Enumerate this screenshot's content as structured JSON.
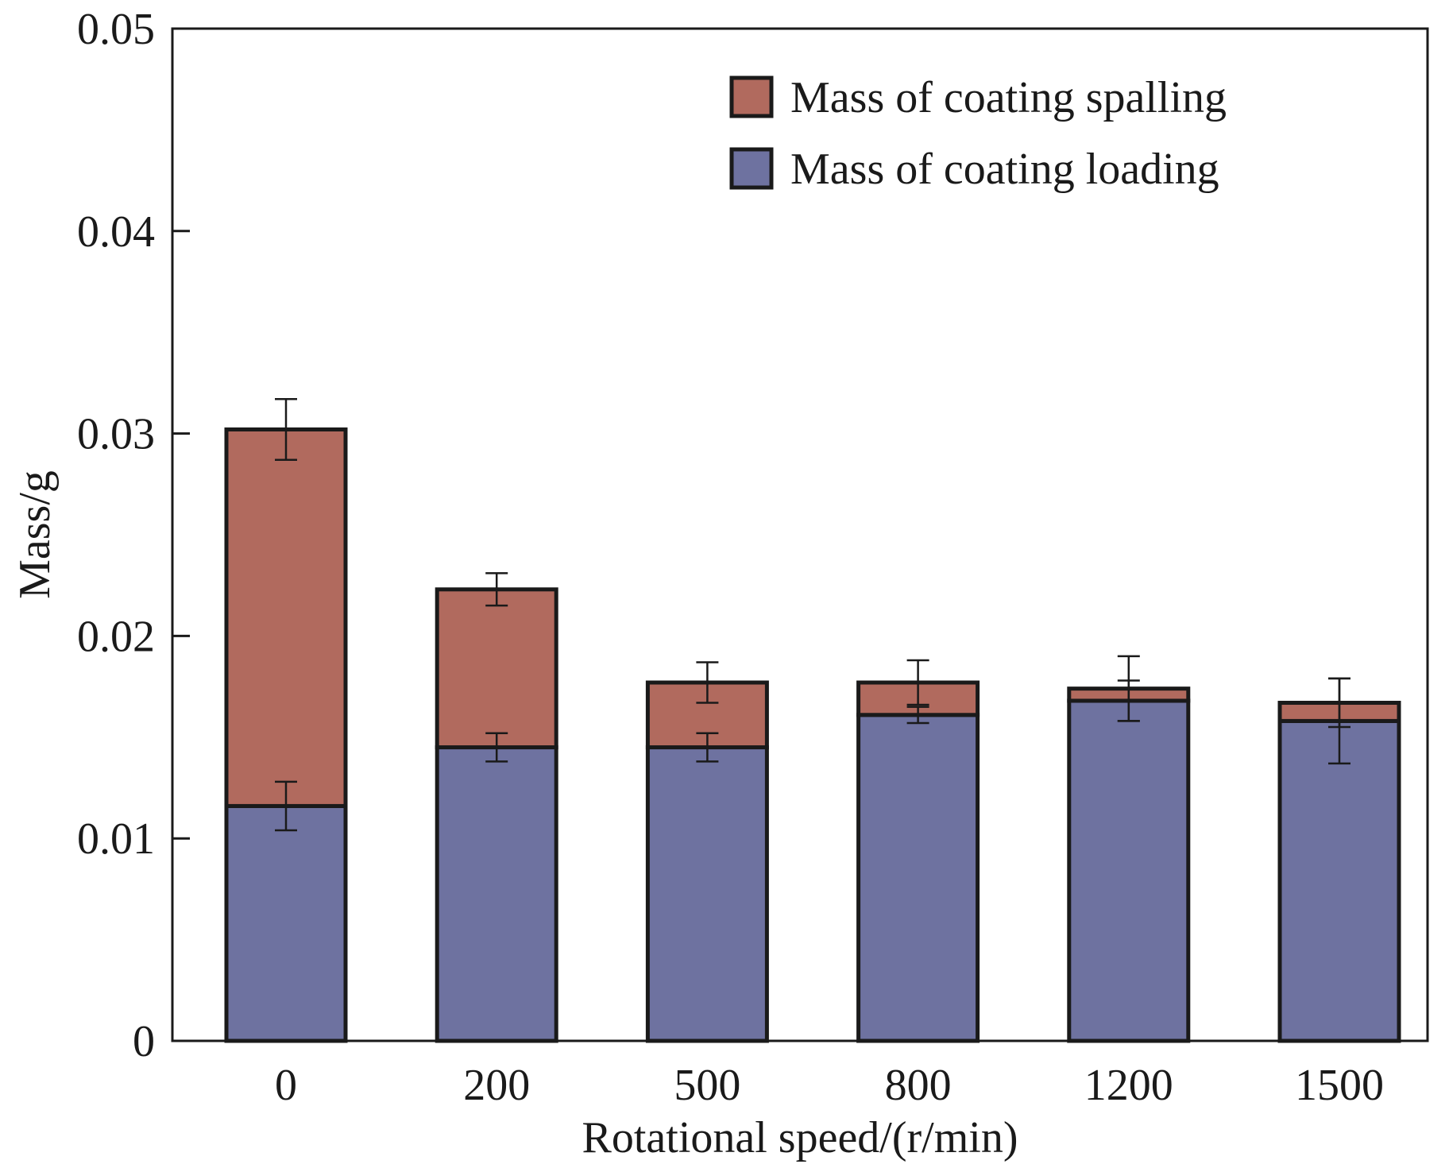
{
  "chart_data": {
    "type": "bar",
    "stacked": true,
    "title": "",
    "xlabel": "Rotational speed/(r/min)",
    "ylabel": "Mass/g",
    "ylim": [
      0,
      0.05
    ],
    "yticks": [
      "0",
      "0.01",
      "0.02",
      "0.03",
      "0.04",
      "0.05"
    ],
    "ytick_values": [
      0,
      0.01,
      0.02,
      0.03,
      0.04,
      0.05
    ],
    "categories": [
      "0",
      "200",
      "500",
      "800",
      "1200",
      "1500"
    ],
    "series": [
      {
        "name": "Mass of coating loading",
        "color": "#6e72a0",
        "values": [
          0.0116,
          0.0145,
          0.0145,
          0.0161,
          0.0168,
          0.0158
        ],
        "error": [
          0.0012,
          0.0007,
          0.0007,
          0.0004,
          0.001,
          0.0021
        ]
      },
      {
        "name": "Mass of coating spalling",
        "color": "#b16a5e",
        "values": [
          0.0186,
          0.0078,
          0.0032,
          0.0016,
          0.0006,
          0.0009
        ],
        "error": [
          0.0015,
          0.0008,
          0.001,
          0.0011,
          0.0016,
          0.0012
        ]
      }
    ],
    "legend": {
      "position": "top-right",
      "order": [
        "Mass of coating spalling",
        "Mass of coating loading"
      ]
    },
    "grid": false,
    "edge_color": "#1a1a1a"
  }
}
